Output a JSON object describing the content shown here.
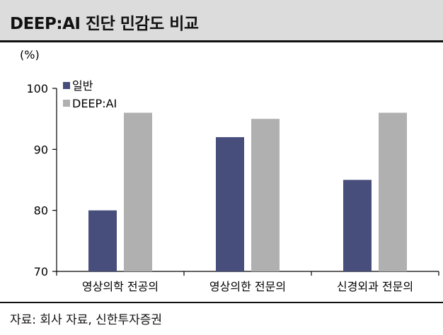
{
  "header": {
    "title": "DEEP:AI 진단 민감도 비교"
  },
  "source": "자료: 회사 자료, 신한투자증권",
  "chart_data": {
    "type": "bar",
    "unit_label": "(%)",
    "categories": [
      "영상의학 전공의",
      "영상의한 전문의",
      "신경외과 전문의"
    ],
    "series": [
      {
        "name": "일반",
        "values": [
          80,
          92,
          85
        ],
        "color": "#474e7c"
      },
      {
        "name": "DEEP:AI",
        "values": [
          96,
          95,
          96
        ],
        "color": "#b0b0b0"
      }
    ],
    "yticks": [
      70,
      80,
      90,
      100
    ],
    "ylim": [
      70,
      100
    ],
    "legend_position": "top-left",
    "grid": false
  }
}
